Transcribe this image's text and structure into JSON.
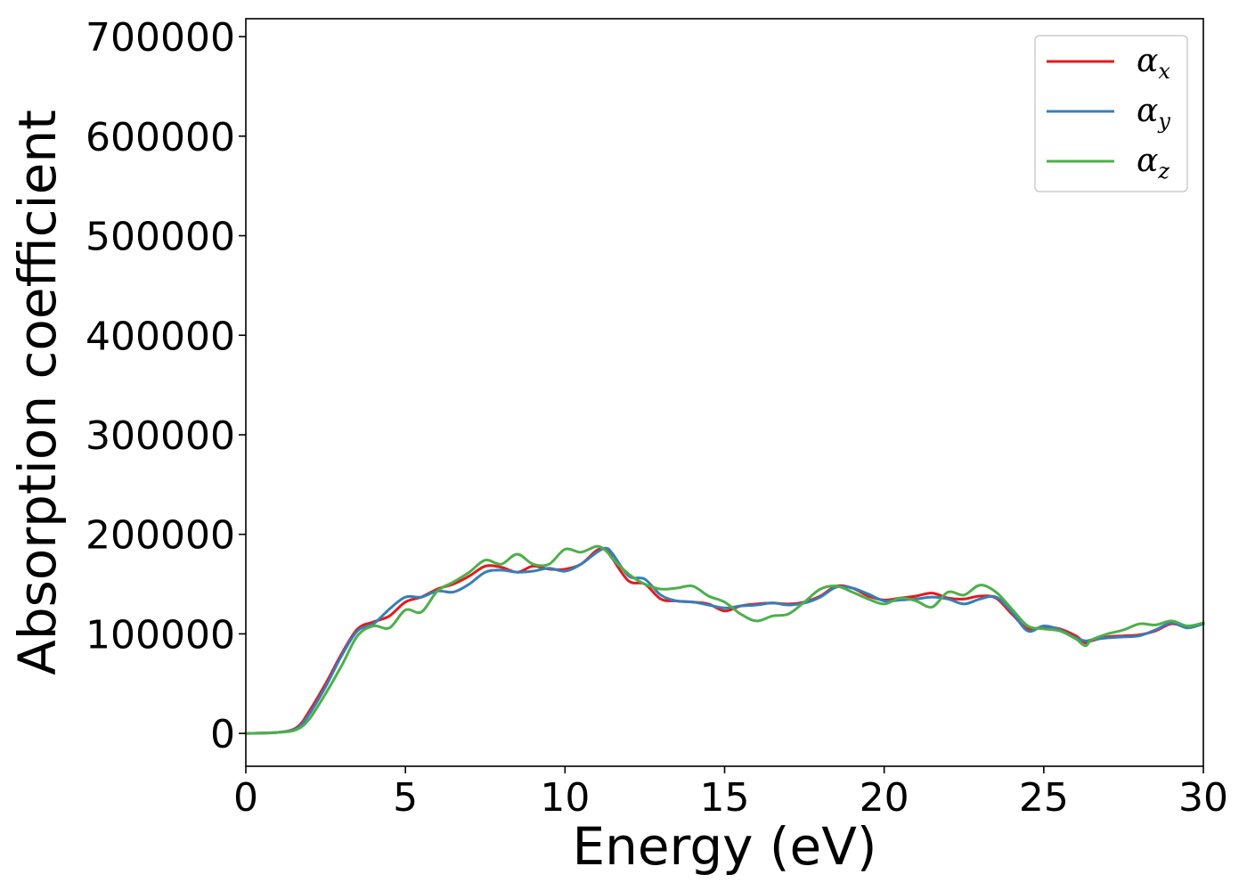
{
  "chart_data": {
    "type": "line",
    "xlabel": "Energy (eV)",
    "ylabel": "Absorption coefficient",
    "xlim": [
      0,
      30
    ],
    "ylim": [
      -33000,
      718000
    ],
    "xticks": [
      0,
      5,
      10,
      15,
      20,
      25,
      30
    ],
    "yticks": [
      0,
      100000,
      200000,
      300000,
      400000,
      500000,
      600000,
      700000
    ],
    "xtick_labels": [
      "0",
      "5",
      "10",
      "15",
      "20",
      "25",
      "30"
    ],
    "ytick_labels": [
      "0",
      "100000",
      "200000",
      "300000",
      "400000",
      "500000",
      "600000",
      "700000"
    ],
    "grid": false,
    "legend_position": "top-right",
    "series": [
      {
        "name": "α_x",
        "label_main": "α",
        "label_sub": "x",
        "color": "#e41a1c",
        "x": [
          0,
          1,
          1.6,
          2,
          2.5,
          3,
          3.5,
          4,
          4.5,
          5,
          5.5,
          6,
          6.5,
          7,
          7.5,
          8,
          8.5,
          9,
          9.5,
          10,
          10.5,
          11,
          11.3,
          11.5,
          12,
          12.5,
          13,
          13.5,
          14,
          14.5,
          15,
          15.5,
          16,
          16.5,
          17,
          17.5,
          18,
          18.5,
          19,
          19.5,
          20,
          20.5,
          21,
          21.5,
          22,
          22.5,
          23,
          23.5,
          24,
          24.5,
          25,
          25.5,
          26,
          26.3,
          26.5,
          27,
          27.5,
          28,
          28.5,
          29,
          29.5,
          30
        ],
        "y": [
          0,
          1000,
          6000,
          23000,
          50000,
          80000,
          105000,
          112000,
          118000,
          132000,
          137000,
          145000,
          150000,
          158000,
          168000,
          167000,
          162000,
          168000,
          165000,
          165000,
          170000,
          184000,
          185000,
          175000,
          153000,
          150000,
          135000,
          133000,
          132000,
          130000,
          123000,
          128000,
          130000,
          131000,
          130000,
          132000,
          138000,
          148000,
          146000,
          138000,
          134000,
          136000,
          138000,
          141000,
          136000,
          135000,
          138000,
          136000,
          120000,
          105000,
          107000,
          105000,
          98000,
          91000,
          93000,
          97000,
          98000,
          99000,
          103000,
          110000,
          107000,
          110000
        ]
      },
      {
        "name": "α_y",
        "label_main": "α",
        "label_sub": "y",
        "color": "#377eb8",
        "x": [
          0,
          1,
          1.6,
          2,
          2.5,
          3,
          3.5,
          4,
          4.5,
          5,
          5.5,
          6,
          6.5,
          7,
          7.5,
          8,
          8.5,
          9,
          9.5,
          10,
          10.5,
          11,
          11.3,
          11.5,
          12,
          12.5,
          13,
          13.5,
          14,
          14.5,
          15,
          15.5,
          16,
          16.5,
          17,
          17.5,
          18,
          18.5,
          19,
          19.5,
          20,
          20.5,
          21,
          21.5,
          22,
          22.5,
          23,
          23.5,
          24,
          24.5,
          25,
          25.5,
          26,
          26.3,
          26.5,
          27,
          27.5,
          28,
          28.5,
          29,
          29.5,
          30
        ],
        "y": [
          0,
          1000,
          5000,
          20000,
          47000,
          78000,
          103000,
          110000,
          125000,
          137000,
          137000,
          143000,
          142000,
          150000,
          162000,
          164000,
          162000,
          163000,
          166000,
          163000,
          170000,
          182000,
          186000,
          180000,
          158000,
          155000,
          139000,
          133000,
          132000,
          129000,
          126000,
          128000,
          129000,
          131000,
          129000,
          131000,
          137000,
          147000,
          146000,
          140000,
          133000,
          134000,
          135000,
          137000,
          135000,
          130000,
          135000,
          137000,
          122000,
          103000,
          108000,
          104000,
          96000,
          93000,
          94000,
          96000,
          97000,
          98000,
          104000,
          111000,
          106000,
          110000
        ]
      },
      {
        "name": "α_z",
        "label_main": "α",
        "label_sub": "z",
        "color": "#4daf4a",
        "x": [
          0,
          1,
          1.6,
          2,
          2.5,
          3,
          3.5,
          4,
          4.5,
          5,
          5.5,
          6,
          6.5,
          7,
          7.5,
          8,
          8.5,
          9,
          9.5,
          10,
          10.5,
          11,
          11.3,
          11.5,
          12,
          12.5,
          13,
          13.5,
          14,
          14.5,
          15,
          15.5,
          16,
          16.5,
          17,
          17.5,
          18,
          18.5,
          19,
          19.5,
          20,
          20.5,
          21,
          21.5,
          22,
          22.5,
          23,
          23.5,
          24,
          24.5,
          25,
          25.5,
          26,
          26.3,
          26.5,
          27,
          27.5,
          28,
          28.5,
          29,
          29.5,
          30
        ],
        "y": [
          0,
          1000,
          4000,
          15000,
          40000,
          68000,
          98000,
          108000,
          106000,
          124000,
          122000,
          143000,
          152000,
          162000,
          174000,
          170000,
          180000,
          170000,
          170000,
          185000,
          182000,
          188000,
          183000,
          175000,
          160000,
          150000,
          145000,
          146000,
          148000,
          138000,
          132000,
          120000,
          113000,
          118000,
          120000,
          132000,
          145000,
          148000,
          142000,
          135000,
          130000,
          136000,
          133000,
          127000,
          142000,
          139000,
          149000,
          142000,
          125000,
          108000,
          105000,
          103000,
          95000,
          88000,
          94000,
          100000,
          104000,
          110000,
          109000,
          113000,
          108000,
          111000
        ]
      }
    ]
  }
}
